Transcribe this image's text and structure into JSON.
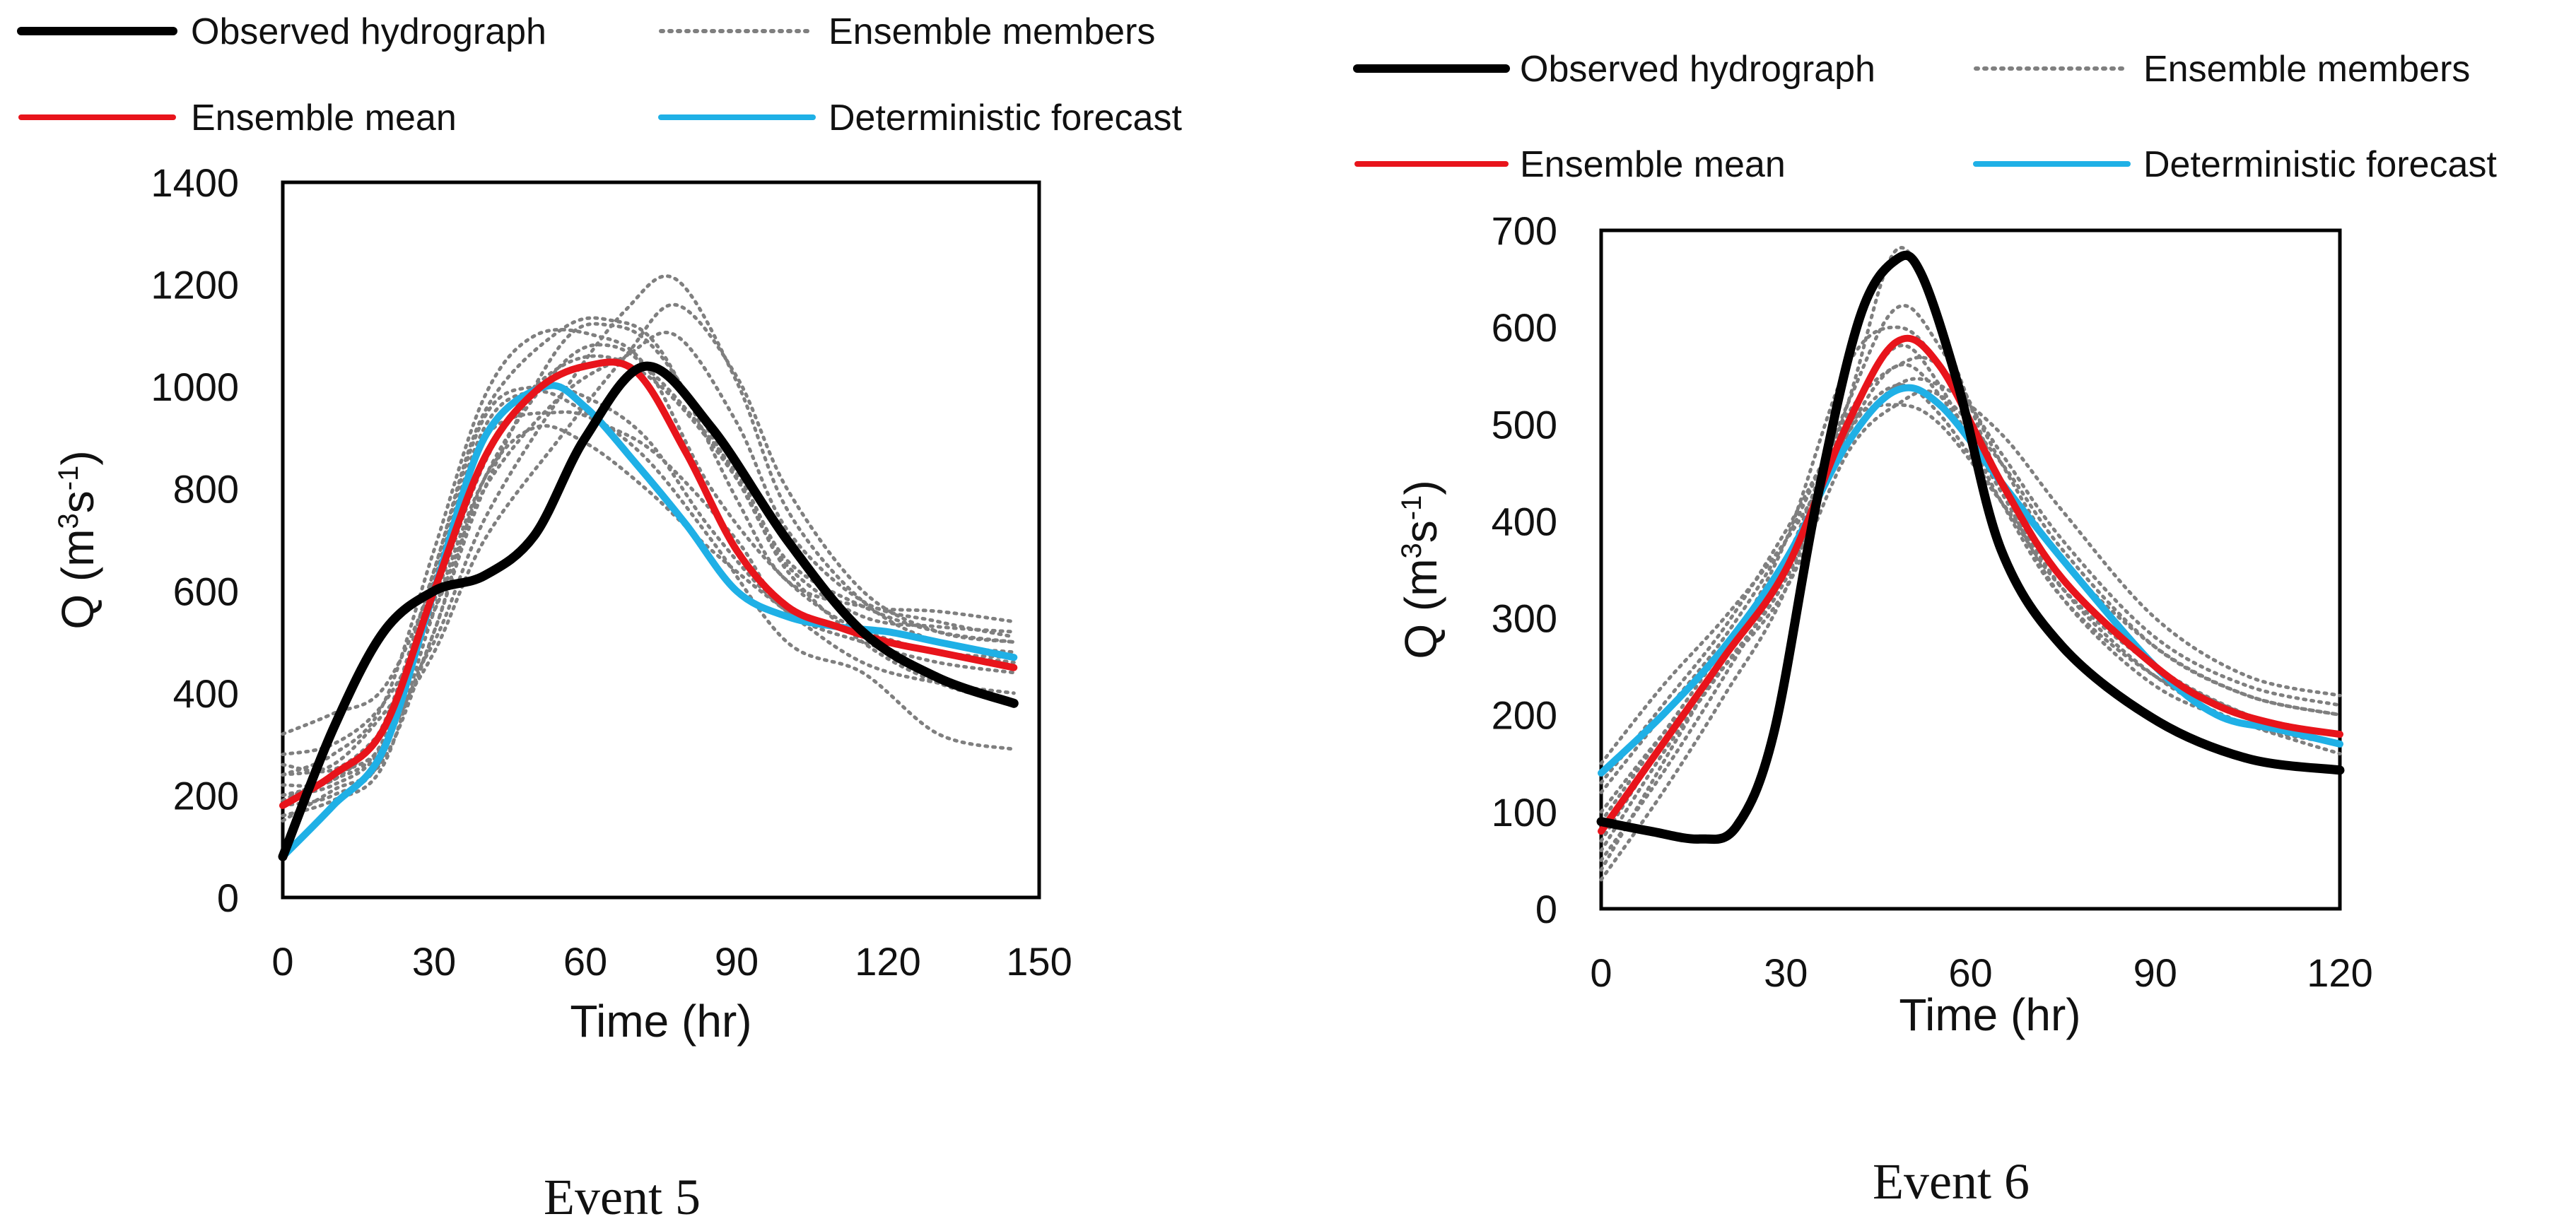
{
  "legend": {
    "observed": "Observed hydrograph",
    "members": "Ensemble members",
    "mean": "Ensemble mean",
    "deterministic": "Deterministic forecast"
  },
  "colors": {
    "observed": "#000000",
    "members": "#7f7f7f",
    "mean": "#e8141b",
    "deterministic": "#1fb0e6",
    "frame": "#000000"
  },
  "axis_labels": {
    "xlabel": "Time (hr)",
    "ylabel_main": "Q (m",
    "ylabel_sup1": "3",
    "ylabel_mid": "s",
    "ylabel_sup2": "-1",
    "ylabel_end": ")"
  },
  "chart_data": [
    {
      "type": "line",
      "caption": "Event 5",
      "xlabel": "Time (hr)",
      "ylabel": "Q (m3s-1)",
      "xlim": [
        0,
        150
      ],
      "ylim": [
        0,
        1400
      ],
      "xticks": [
        0,
        30,
        60,
        90,
        120,
        150
      ],
      "yticks": [
        0,
        200,
        400,
        600,
        800,
        1000,
        1200,
        1400
      ],
      "series": [
        {
          "key": "observed",
          "name": "Observed hydrograph",
          "x": [
            0,
            10,
            20,
            30,
            40,
            50,
            60,
            72,
            85,
            100,
            115,
            130,
            145
          ],
          "y": [
            80,
            330,
            520,
            600,
            630,
            710,
            900,
            1040,
            920,
            700,
            520,
            430,
            380
          ]
        },
        {
          "key": "mean",
          "name": "Ensemble mean",
          "x": [
            0,
            10,
            20,
            30,
            40,
            50,
            60,
            70,
            80,
            90,
            100,
            110,
            120,
            130,
            145
          ],
          "y": [
            180,
            240,
            330,
            600,
            860,
            990,
            1040,
            1030,
            870,
            680,
            570,
            530,
            500,
            480,
            450
          ]
        },
        {
          "key": "deterministic",
          "name": "Deterministic forecast",
          "x": [
            0,
            10,
            20,
            30,
            40,
            52,
            60,
            70,
            80,
            90,
            100,
            110,
            120,
            130,
            145
          ],
          "y": [
            80,
            180,
            290,
            600,
            900,
            1000,
            960,
            850,
            730,
            600,
            550,
            530,
            520,
            500,
            470
          ]
        }
      ],
      "members": [
        {
          "x": [
            0,
            10,
            20,
            30,
            40,
            55,
            65,
            75,
            90,
            100,
            115,
            130,
            145
          ],
          "y": [
            150,
            210,
            270,
            520,
            800,
            1080,
            1120,
            1060,
            820,
            650,
            550,
            530,
            520
          ]
        },
        {
          "x": [
            0,
            10,
            20,
            30,
            40,
            55,
            65,
            75,
            90,
            100,
            115,
            130,
            145
          ],
          "y": [
            220,
            230,
            340,
            640,
            950,
            1110,
            1130,
            1070,
            780,
            620,
            570,
            560,
            540
          ]
        },
        {
          "x": [
            0,
            10,
            20,
            30,
            40,
            55,
            65,
            75,
            90,
            100,
            115,
            130,
            145
          ],
          "y": [
            320,
            360,
            410,
            620,
            900,
            950,
            920,
            860,
            700,
            560,
            520,
            480,
            460
          ]
        },
        {
          "x": [
            0,
            10,
            20,
            30,
            40,
            50,
            62,
            75,
            90,
            100,
            115,
            130,
            145
          ],
          "y": [
            200,
            220,
            300,
            580,
            850,
            1000,
            1060,
            1000,
            820,
            640,
            500,
            420,
            380
          ]
        },
        {
          "x": [
            0,
            10,
            20,
            30,
            40,
            55,
            68,
            78,
            90,
            100,
            115,
            130,
            145
          ],
          "y": [
            240,
            260,
            360,
            500,
            740,
            980,
            1150,
            1210,
            1010,
            760,
            580,
            500,
            480
          ]
        },
        {
          "x": [
            0,
            10,
            20,
            30,
            40,
            55,
            68,
            78,
            90,
            100,
            115,
            130,
            145
          ],
          "y": [
            260,
            250,
            330,
            480,
            700,
            900,
            1060,
            1160,
            1020,
            800,
            600,
            520,
            500
          ]
        },
        {
          "x": [
            0,
            10,
            20,
            30,
            40,
            50,
            60,
            72,
            85,
            100,
            115,
            130,
            145
          ],
          "y": [
            180,
            200,
            280,
            620,
            920,
            990,
            950,
            860,
            700,
            500,
            440,
            320,
            290
          ]
        },
        {
          "x": [
            0,
            10,
            20,
            30,
            40,
            50,
            60,
            72,
            85,
            100,
            115,
            130,
            145
          ],
          "y": [
            160,
            190,
            260,
            560,
            820,
            920,
            890,
            800,
            680,
            560,
            460,
            420,
            400
          ]
        },
        {
          "x": [
            0,
            10,
            20,
            30,
            40,
            50,
            62,
            72,
            85,
            100,
            115,
            130,
            145
          ],
          "y": [
            240,
            280,
            380,
            680,
            980,
            1100,
            1100,
            1040,
            800,
            620,
            520,
            480,
            470
          ]
        },
        {
          "x": [
            0,
            10,
            20,
            30,
            40,
            55,
            68,
            78,
            90,
            100,
            115,
            130,
            145
          ],
          "y": [
            280,
            300,
            380,
            560,
            800,
            980,
            1060,
            1100,
            930,
            720,
            580,
            540,
            510
          ]
        },
        {
          "x": [
            0,
            10,
            20,
            30,
            40,
            50,
            60,
            72,
            85,
            100,
            115,
            130,
            145
          ],
          "y": [
            200,
            230,
            310,
            640,
            940,
            1000,
            980,
            900,
            720,
            560,
            500,
            460,
            440
          ]
        },
        {
          "x": [
            0,
            10,
            20,
            30,
            40,
            55,
            65,
            75,
            90,
            100,
            115,
            130,
            145
          ],
          "y": [
            190,
            240,
            300,
            520,
            820,
            1040,
            1080,
            1010,
            830,
            660,
            570,
            520,
            500
          ]
        }
      ]
    },
    {
      "type": "line",
      "caption": "Event 6",
      "xlabel": "Time (hr)",
      "ylabel": "Q (m3s-1)",
      "xlim": [
        0,
        120
      ],
      "ylim": [
        0,
        700
      ],
      "xticks": [
        0,
        30,
        60,
        90,
        120
      ],
      "yticks": [
        0,
        100,
        200,
        300,
        400,
        500,
        600,
        700
      ],
      "series": [
        {
          "key": "observed",
          "name": "Observed hydrograph",
          "x": [
            0,
            8,
            16,
            22,
            28,
            35,
            42,
            48,
            52,
            58,
            65,
            75,
            90,
            105,
            120
          ],
          "y": [
            90,
            80,
            72,
            85,
            180,
            420,
            610,
            670,
            655,
            540,
            370,
            270,
            195,
            155,
            143
          ]
        },
        {
          "key": "mean",
          "name": "Ensemble mean",
          "x": [
            0,
            10,
            20,
            30,
            40,
            48,
            55,
            65,
            75,
            90,
            100,
            110,
            120
          ],
          "y": [
            80,
            170,
            260,
            350,
            500,
            585,
            560,
            440,
            340,
            250,
            210,
            190,
            180
          ]
        },
        {
          "key": "deterministic",
          "name": "Deterministic forecast",
          "x": [
            0,
            10,
            20,
            30,
            40,
            48,
            55,
            65,
            75,
            90,
            100,
            110,
            120
          ],
          "y": [
            140,
            200,
            270,
            360,
            480,
            535,
            520,
            440,
            360,
            250,
            200,
            185,
            170
          ]
        }
      ],
      "members": [
        {
          "x": [
            0,
            10,
            20,
            30,
            40,
            48,
            55,
            65,
            75,
            90,
            105,
            120
          ],
          "y": [
            30,
            120,
            220,
            330,
            520,
            680,
            600,
            440,
            330,
            240,
            190,
            170
          ]
        },
        {
          "x": [
            0,
            10,
            20,
            30,
            40,
            48,
            55,
            65,
            75,
            90,
            105,
            120
          ],
          "y": [
            70,
            170,
            260,
            360,
            520,
            620,
            580,
            460,
            360,
            270,
            220,
            200
          ]
        },
        {
          "x": [
            0,
            10,
            20,
            30,
            40,
            48,
            55,
            65,
            75,
            90,
            105,
            120
          ],
          "y": [
            120,
            200,
            280,
            380,
            510,
            560,
            560,
            470,
            380,
            280,
            230,
            210
          ]
        },
        {
          "x": [
            0,
            10,
            20,
            30,
            40,
            48,
            55,
            65,
            75,
            90,
            105,
            120
          ],
          "y": [
            150,
            230,
            300,
            380,
            480,
            540,
            540,
            490,
            410,
            300,
            240,
            220
          ]
        },
        {
          "x": [
            0,
            10,
            20,
            30,
            40,
            48,
            55,
            65,
            75,
            90,
            105,
            120
          ],
          "y": [
            50,
            140,
            240,
            350,
            500,
            580,
            540,
            420,
            320,
            240,
            200,
            180
          ]
        },
        {
          "x": [
            0,
            10,
            20,
            30,
            40,
            48,
            55,
            65,
            75,
            90,
            105,
            120
          ],
          "y": [
            90,
            180,
            270,
            360,
            490,
            540,
            510,
            420,
            330,
            250,
            200,
            170
          ]
        },
        {
          "x": [
            0,
            10,
            20,
            30,
            40,
            48,
            55,
            65,
            75,
            90,
            105,
            120
          ],
          "y": [
            40,
            150,
            260,
            380,
            560,
            600,
            560,
            440,
            340,
            250,
            200,
            180
          ]
        },
        {
          "x": [
            0,
            10,
            20,
            30,
            40,
            48,
            55,
            65,
            75,
            90,
            105,
            120
          ],
          "y": [
            100,
            180,
            250,
            330,
            470,
            520,
            530,
            460,
            370,
            270,
            220,
            200
          ]
        },
        {
          "x": [
            0,
            10,
            20,
            30,
            40,
            48,
            55,
            65,
            75,
            90,
            105,
            120
          ],
          "y": [
            130,
            210,
            290,
            390,
            500,
            520,
            500,
            420,
            340,
            250,
            200,
            170
          ]
        },
        {
          "x": [
            0,
            10,
            20,
            30,
            40,
            48,
            55,
            65,
            75,
            90,
            105,
            120
          ],
          "y": [
            60,
            160,
            250,
            340,
            490,
            560,
            530,
            430,
            320,
            230,
            190,
            160
          ]
        }
      ]
    }
  ]
}
